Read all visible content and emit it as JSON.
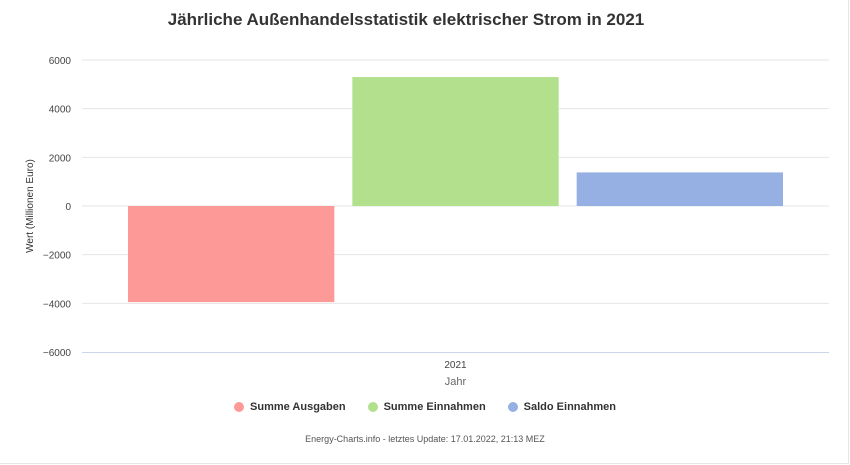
{
  "chart_data": {
    "type": "bar",
    "title": "Jährliche Außenhandelsstatistik elektrischer Strom in 2021",
    "xlabel": "Jahr",
    "ylabel": "Wert (Millionen Euro)",
    "categories": [
      "2021"
    ],
    "ylim": [
      -6000,
      6000
    ],
    "yticks": [
      6000,
      4000,
      2000,
      0,
      -2000,
      -4000,
      -6000
    ],
    "ytick_labels": [
      "6000",
      "4000",
      "2000",
      "0",
      "−2000",
      "−4000",
      "−6000"
    ],
    "grid": true,
    "legend_position": "bottom-center",
    "series": [
      {
        "name": "Summe Ausgaben",
        "values": [
          -3950
        ],
        "color": "#fd9a98"
      },
      {
        "name": "Summe Einnahmen",
        "values": [
          5300
        ],
        "color": "#b3e08d"
      },
      {
        "name": "Saldo Einnahmen",
        "values": [
          1380
        ],
        "color": "#97b0e3"
      }
    ]
  },
  "credits": "Energy-Charts.info - letztes Update: 17.01.2022, 21:13 MEZ"
}
